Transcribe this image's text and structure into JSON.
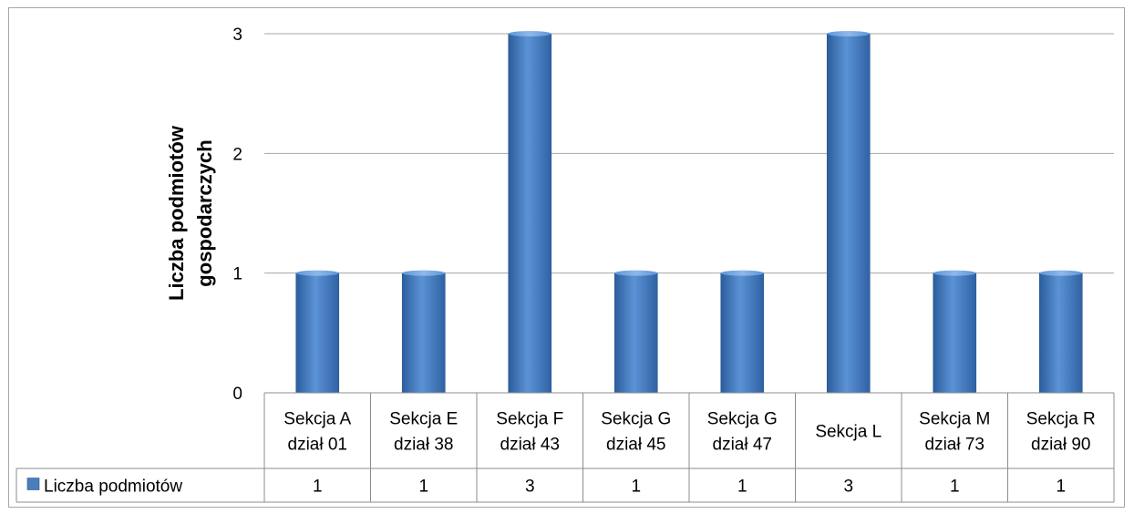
{
  "chart_data": {
    "type": "bar",
    "ylabel_lines": [
      "Liczba podmiotów",
      "gospodarczych"
    ],
    "categories": [
      [
        "Sekcja A",
        "dział 01"
      ],
      [
        "Sekcja E",
        "dział 38"
      ],
      [
        "Sekcja F",
        "dział 43"
      ],
      [
        "Sekcja G",
        "dział 45"
      ],
      [
        "Sekcja G",
        "dział 47"
      ],
      [
        "Sekcja L"
      ],
      [
        "Sekcja M",
        "dział 73"
      ],
      [
        "Sekcja R",
        "dział 90"
      ]
    ],
    "series": [
      {
        "name": "Liczba podmiotów",
        "values": [
          1,
          1,
          3,
          1,
          1,
          3,
          1,
          1
        ],
        "color": "#4a7ebb"
      }
    ],
    "ylim": [
      0,
      3
    ],
    "yticks": [
      "0",
      "1",
      "2",
      "3"
    ],
    "grid": true,
    "legend": "data-table-left"
  }
}
